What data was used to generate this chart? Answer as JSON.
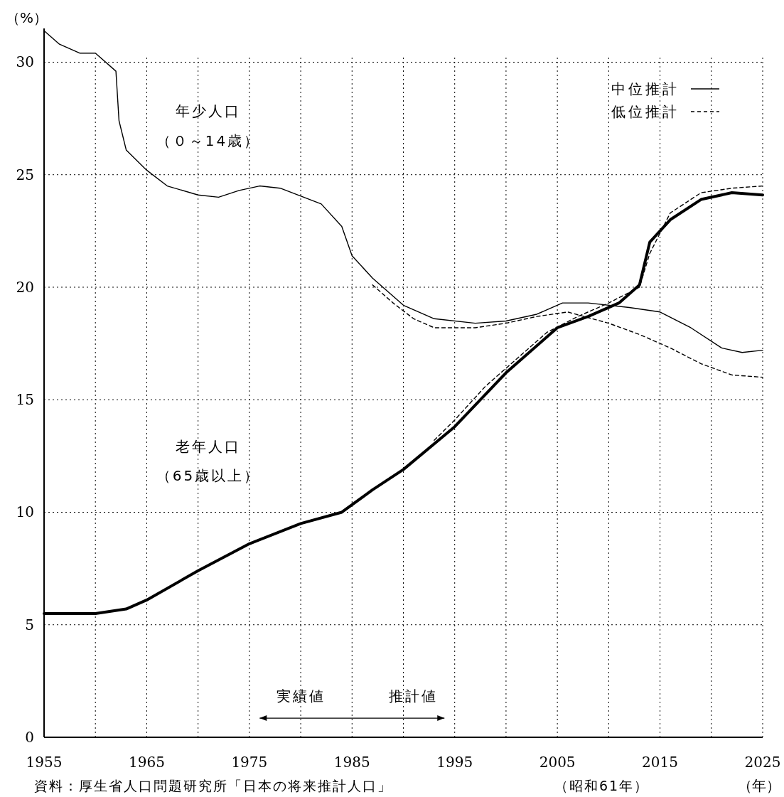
{
  "chart_data": {
    "type": "line",
    "ylabel": "（%）",
    "xlabel": "（年）",
    "xlim": [
      1955,
      2025
    ],
    "ylim": [
      0,
      31.5
    ],
    "xticks": [
      1955,
      {
        "value": 1960,
        "label": null
      },
      1965,
      {
        "value": 1970,
        "label": null
      },
      1975,
      {
        "value": 1980,
        "label": null
      },
      1985,
      {
        "value": 1990,
        "label": null
      },
      1995,
      {
        "value": 2000,
        "label": null
      },
      2005,
      {
        "value": 2010,
        "label": null
      },
      2015,
      {
        "value": 2020,
        "label": null
      },
      2025
    ],
    "yticks": [
      0,
      5,
      10,
      15,
      20,
      25,
      30
    ],
    "grid": true,
    "legend": "top right",
    "marker": "none",
    "series": [
      {
        "color": "#000000",
        "line_style": "solid",
        "x": [
          1955,
          1956.5,
          1958.5,
          1960,
          1962,
          1962.3,
          1963,
          1965,
          1967,
          1970,
          1972,
          1974,
          1976,
          1978,
          1982,
          1984,
          1985,
          1987,
          1990,
          1993,
          1997,
          2000,
          2003,
          2005.5,
          2008,
          2012,
          2015,
          2018,
          2021,
          2023,
          2025
        ],
        "values": [
          31.4,
          30.8,
          30.4,
          30.4,
          29.6,
          27.4,
          26.1,
          25.2,
          24.5,
          24.1,
          24.0,
          24.3,
          24.5,
          24.4,
          23.7,
          22.7,
          21.4,
          20.4,
          19.2,
          18.6,
          18.4,
          18.5,
          18.8,
          19.3,
          19.3,
          19.1,
          18.9,
          18.2,
          17.3,
          17.1,
          17.2
        ]
      },
      {
        "color": "#000000",
        "line_style": "dashed",
        "x": [
          1987,
          1989,
          1991,
          1993,
          1997,
          2000,
          2003,
          2006,
          2010,
          2013,
          2016,
          2019,
          2022,
          2025
        ],
        "values": [
          20.1,
          19.3,
          18.6,
          18.2,
          18.2,
          18.4,
          18.7,
          18.9,
          18.4,
          17.9,
          17.3,
          16.6,
          16.1,
          16.0
        ]
      },
      {
        "name": "中位推計",
        "color": "#000000",
        "line_style": "solid",
        "x": [
          1955,
          1960,
          1963,
          1965,
          1970,
          1975,
          1980,
          1984,
          1987,
          1990,
          1995,
          2000,
          2005,
          2008,
          2011,
          2013,
          2014,
          2016,
          2019,
          2022,
          2025
        ],
        "values": [
          5.5,
          5.5,
          5.7,
          6.1,
          7.4,
          8.6,
          9.5,
          10.0,
          11.0,
          11.9,
          13.8,
          16.2,
          18.2,
          18.7,
          19.3,
          20.1,
          22.0,
          23.0,
          23.9,
          24.2,
          24.1
        ]
      },
      {
        "name": "低位推計",
        "color": "#000000",
        "line_style": "dashed",
        "x": [
          1993,
          1995,
          1998,
          2001,
          2004,
          2007,
          2010,
          2013,
          2014,
          2016,
          2019,
          2022,
          2025
        ],
        "values": [
          13.2,
          14.1,
          15.6,
          16.8,
          18.0,
          18.7,
          19.3,
          20.0,
          21.5,
          23.3,
          24.2,
          24.4,
          24.5
        ]
      }
    ],
    "annotations": [
      "年少人口",
      "（０～14歳）",
      "老年人口",
      "（65歳以上）",
      "実績値",
      "推計値",
      "資料：厚生省人口問題研究所「日本の将来推計人口」",
      "（昭和61年）"
    ]
  }
}
